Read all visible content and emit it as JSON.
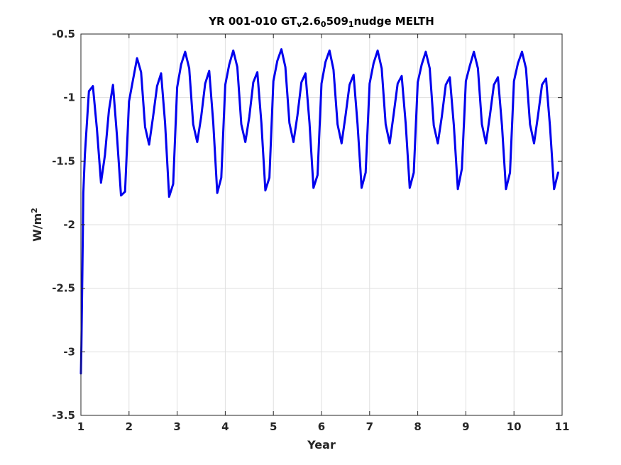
{
  "chart_data": {
    "type": "line",
    "title": {
      "part1": "YR 001-010 GT",
      "sub1": "v",
      "part2": "2.6",
      "sub2": "0",
      "part3": "509",
      "sub3": "1",
      "part4": "nudge MELTH"
    },
    "xlabel": "Year",
    "ylabel": {
      "base": "W/m",
      "sup": "2"
    },
    "xlim": [
      1,
      11
    ],
    "ylim": [
      -3.5,
      -0.5
    ],
    "xticks": [
      "1",
      "2",
      "3",
      "4",
      "5",
      "6",
      "7",
      "8",
      "9",
      "10",
      "11"
    ],
    "yticks": [
      "-3.5",
      "-3",
      "-2.5",
      "-2",
      "-1.5",
      "-1",
      "-0.5"
    ],
    "grid": true,
    "series": [
      {
        "color": "#0000ee",
        "x": [
          1.0,
          1.01,
          1.03,
          1.05,
          1.083,
          1.167,
          1.25,
          1.333,
          1.417,
          1.5,
          1.583,
          1.667,
          1.75,
          1.833,
          1.917,
          2.0,
          2.083,
          2.167,
          2.25,
          2.333,
          2.417,
          2.5,
          2.583,
          2.667,
          2.75,
          2.833,
          2.917,
          3.0,
          3.083,
          3.167,
          3.25,
          3.333,
          3.417,
          3.5,
          3.583,
          3.667,
          3.75,
          3.833,
          3.917,
          4.0,
          4.083,
          4.167,
          4.25,
          4.333,
          4.417,
          4.5,
          4.583,
          4.667,
          4.75,
          4.833,
          4.917,
          5.0,
          5.083,
          5.167,
          5.25,
          5.333,
          5.417,
          5.5,
          5.583,
          5.667,
          5.75,
          5.833,
          5.917,
          6.0,
          6.083,
          6.167,
          6.25,
          6.333,
          6.417,
          6.5,
          6.583,
          6.667,
          6.75,
          6.833,
          6.917,
          7.0,
          7.083,
          7.167,
          7.25,
          7.333,
          7.417,
          7.5,
          7.583,
          7.667,
          7.75,
          7.833,
          7.917,
          8.0,
          8.083,
          8.167,
          8.25,
          8.333,
          8.417,
          8.5,
          8.583,
          8.667,
          8.75,
          8.833,
          8.917,
          9.0,
          9.083,
          9.167,
          9.25,
          9.333,
          9.417,
          9.5,
          9.583,
          9.667,
          9.75,
          9.833,
          9.917,
          10.0,
          10.083,
          10.167,
          10.25,
          10.333,
          10.417,
          10.5,
          10.583,
          10.667,
          10.75,
          10.833,
          10.917
        ],
        "y": [
          -3.17,
          -2.95,
          -2.4,
          -1.75,
          -1.45,
          -0.95,
          -0.91,
          -1.25,
          -1.67,
          -1.45,
          -1.1,
          -0.9,
          -1.3,
          -1.77,
          -1.74,
          -1.03,
          -0.86,
          -0.69,
          -0.8,
          -1.23,
          -1.37,
          -1.15,
          -0.91,
          -0.81,
          -1.2,
          -1.78,
          -1.68,
          -0.92,
          -0.74,
          -0.64,
          -0.77,
          -1.21,
          -1.35,
          -1.15,
          -0.89,
          -0.79,
          -1.2,
          -1.75,
          -1.63,
          -0.9,
          -0.74,
          -0.63,
          -0.76,
          -1.21,
          -1.35,
          -1.15,
          -0.88,
          -0.8,
          -1.2,
          -1.73,
          -1.63,
          -0.87,
          -0.71,
          -0.62,
          -0.76,
          -1.2,
          -1.35,
          -1.14,
          -0.88,
          -0.81,
          -1.2,
          -1.71,
          -1.61,
          -0.89,
          -0.72,
          -0.63,
          -0.78,
          -1.21,
          -1.36,
          -1.14,
          -0.9,
          -0.82,
          -1.21,
          -1.71,
          -1.59,
          -0.89,
          -0.73,
          -0.63,
          -0.77,
          -1.21,
          -1.36,
          -1.13,
          -0.89,
          -0.83,
          -1.21,
          -1.71,
          -1.59,
          -0.88,
          -0.74,
          -0.64,
          -0.77,
          -1.22,
          -1.36,
          -1.15,
          -0.9,
          -0.84,
          -1.22,
          -1.72,
          -1.56,
          -0.87,
          -0.75,
          -0.64,
          -0.77,
          -1.21,
          -1.36,
          -1.14,
          -0.9,
          -0.84,
          -1.22,
          -1.72,
          -1.59,
          -0.87,
          -0.73,
          -0.64,
          -0.77,
          -1.21,
          -1.36,
          -1.14,
          -0.9,
          -0.85,
          -1.23,
          -1.72,
          -1.59
        ]
      }
    ]
  }
}
